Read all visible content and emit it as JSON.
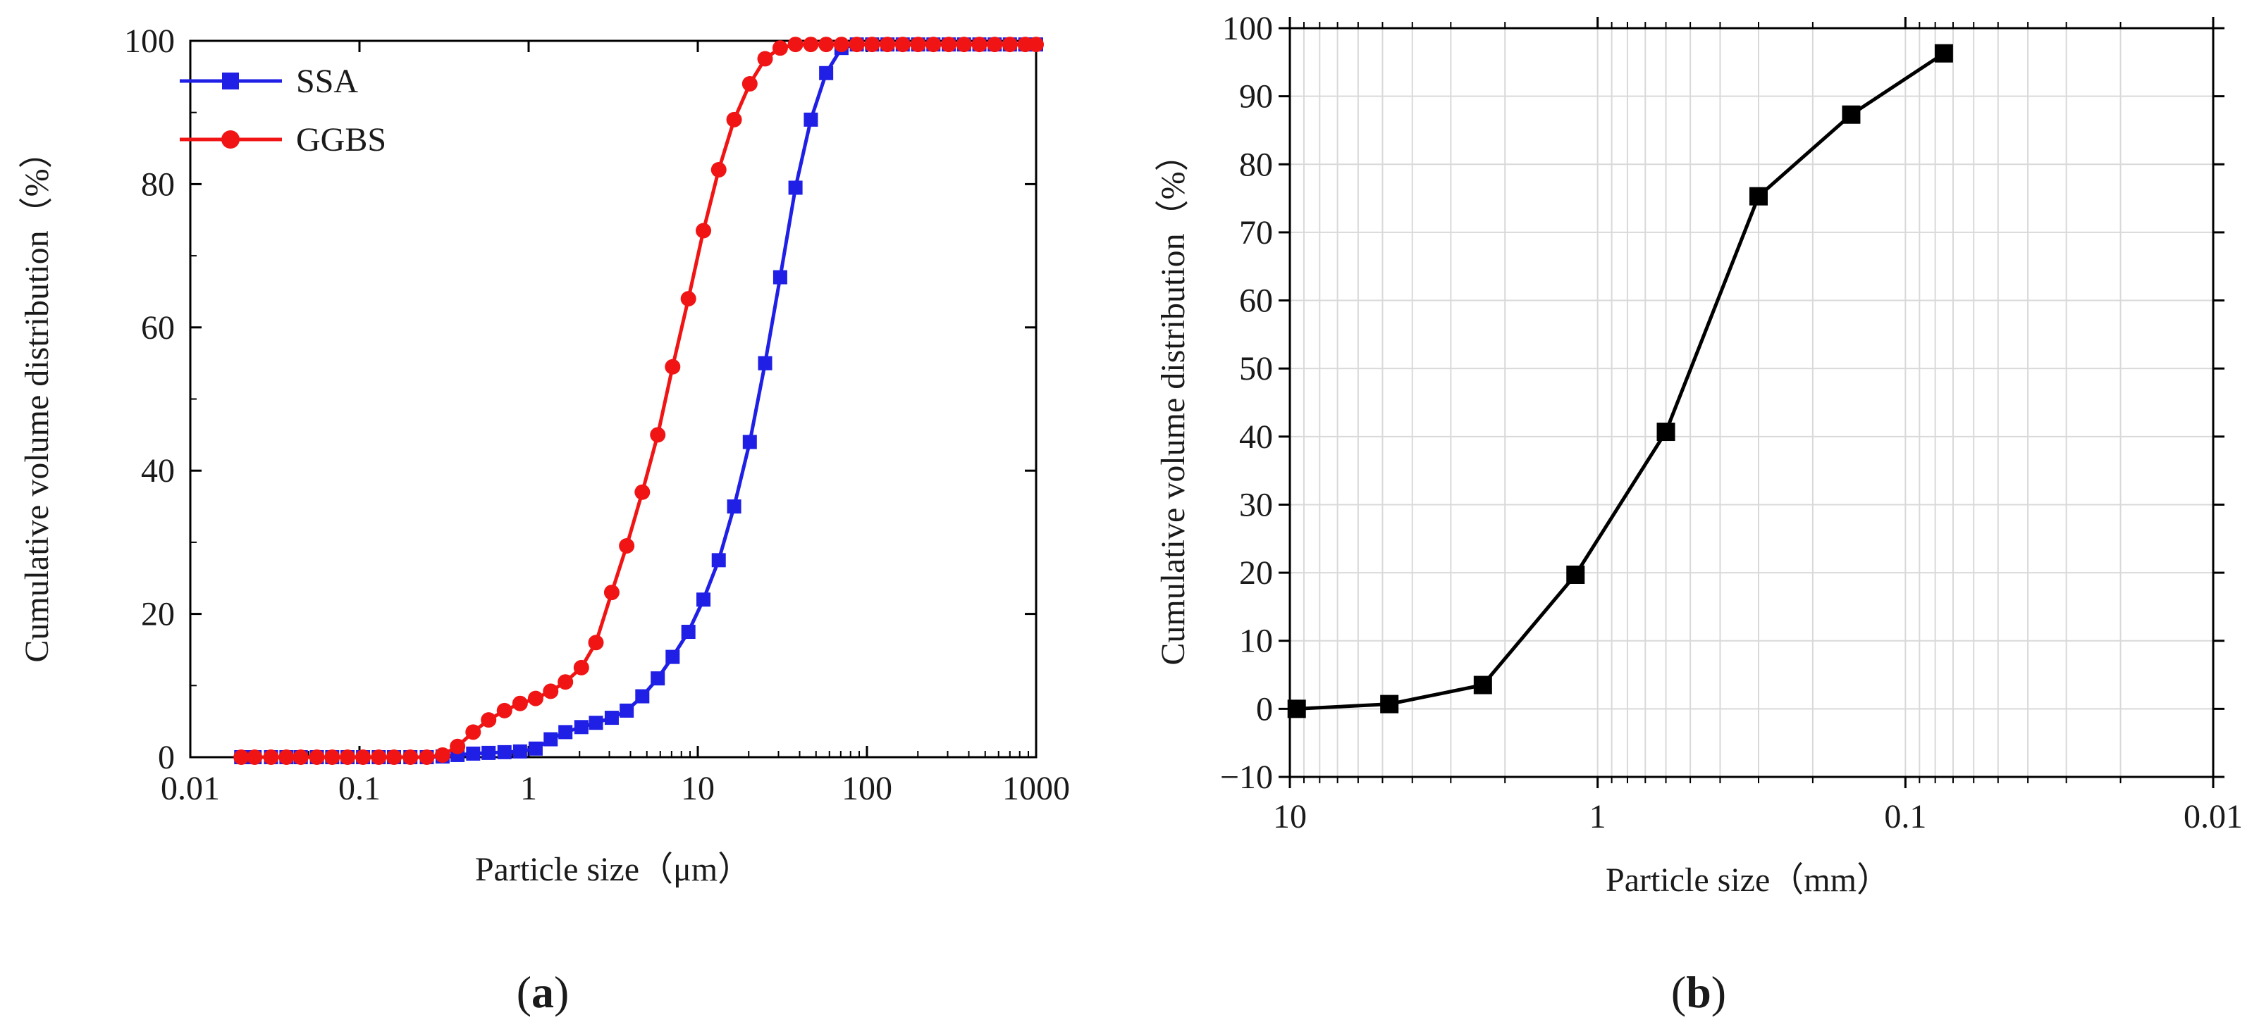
{
  "colors": {
    "ssa": "#1f1fe6",
    "ggbs": "#f01414",
    "panel_b": "#000000",
    "grid": "#d9d9d9",
    "axis": "#000000"
  },
  "chart_data": [
    {
      "id": "a",
      "type": "line",
      "panel_label": "a",
      "title": "",
      "xlabel": "Particle size（μm）",
      "ylabel": "Cumulative volume distribution（%）",
      "xscale": "log",
      "xlim": [
        0.01,
        1000
      ],
      "ylim": [
        0,
        100
      ],
      "xticks": [
        0.01,
        0.1,
        1,
        10,
        100,
        1000
      ],
      "xtick_labels": [
        "0.01",
        "0.1",
        "1",
        "10",
        "100",
        "1000"
      ],
      "yticks": [
        0,
        20,
        40,
        60,
        80,
        100
      ],
      "ytick_labels": [
        "0",
        "20",
        "40",
        "60",
        "80",
        "100"
      ],
      "grid": false,
      "legend_position": "top-left",
      "series": [
        {
          "name": "SSA",
          "marker": "square",
          "x": [
            0.02,
            0.024,
            0.03,
            0.037,
            0.045,
            0.056,
            0.069,
            0.085,
            0.105,
            0.13,
            0.16,
            0.2,
            0.25,
            0.31,
            0.38,
            0.47,
            0.58,
            0.72,
            0.89,
            1.1,
            1.35,
            1.65,
            2.05,
            2.5,
            3.1,
            3.8,
            4.7,
            5.8,
            7.1,
            8.8,
            10.8,
            13.3,
            16.4,
            20.3,
            25,
            30.7,
            37.8,
            46.6,
            57.4,
            70.7,
            87.1,
            107.3,
            132.2,
            162.8,
            200.6,
            247.1,
            304.4,
            375,
            462,
            569,
            700,
            863,
            1000
          ],
          "y": [
            0,
            0,
            0,
            0,
            0,
            0,
            0,
            0,
            0,
            0,
            0,
            0,
            0,
            0.1,
            0.3,
            0.5,
            0.6,
            0.7,
            0.8,
            1.2,
            2.5,
            3.5,
            4.2,
            4.8,
            5.5,
            6.5,
            8.5,
            11,
            14,
            17.5,
            22,
            27.5,
            35,
            44,
            55,
            67,
            79.5,
            89,
            95.5,
            99,
            99.5,
            99.5,
            99.5,
            99.5,
            99.5,
            99.5,
            99.5,
            99.5,
            99.5,
            99.5,
            99.5,
            99.5,
            99.5
          ]
        },
        {
          "name": "GGBS",
          "marker": "circle",
          "x": [
            0.02,
            0.024,
            0.03,
            0.037,
            0.045,
            0.056,
            0.069,
            0.085,
            0.105,
            0.13,
            0.16,
            0.2,
            0.25,
            0.31,
            0.38,
            0.47,
            0.58,
            0.72,
            0.89,
            1.1,
            1.35,
            1.65,
            2.05,
            2.5,
            3.1,
            3.8,
            4.7,
            5.8,
            7.1,
            8.8,
            10.8,
            13.3,
            16.4,
            20.3,
            25,
            30.7,
            37.8,
            46.6,
            57.4,
            70.7,
            87.1,
            107.3,
            132.2,
            162.8,
            200.6,
            247.1,
            304.4,
            375,
            462,
            569,
            700,
            863,
            1000
          ],
          "y": [
            0,
            0,
            0,
            0,
            0,
            0,
            0,
            0,
            0,
            0,
            0,
            0,
            0,
            0.3,
            1.5,
            3.5,
            5.2,
            6.5,
            7.5,
            8.2,
            9.2,
            10.5,
            12.5,
            16,
            23,
            29.5,
            37,
            45,
            54.5,
            64,
            73.5,
            82,
            89,
            94,
            97.5,
            99,
            99.5,
            99.5,
            99.5,
            99.5,
            99.5,
            99.5,
            99.5,
            99.5,
            99.5,
            99.5,
            99.5,
            99.5,
            99.5,
            99.5,
            99.5,
            99.5,
            99.5
          ]
        }
      ]
    },
    {
      "id": "b",
      "type": "line",
      "panel_label": "b",
      "title": "",
      "xlabel": "Particle size（mm）",
      "ylabel": "Cumulative volume distribution（%）",
      "xscale": "log",
      "xreversed": true,
      "xlim": [
        10,
        0.01
      ],
      "ylim": [
        -10,
        100
      ],
      "xticks": [
        10,
        1,
        0.1,
        0.01
      ],
      "xtick_labels": [
        "10",
        "1",
        "0.1",
        "0.01"
      ],
      "yticks": [
        -10,
        0,
        10,
        20,
        30,
        40,
        50,
        60,
        70,
        80,
        90,
        100
      ],
      "ytick_labels": [
        "−10",
        "0",
        "10",
        "20",
        "30",
        "40",
        "50",
        "60",
        "70",
        "80",
        "90",
        "100"
      ],
      "grid": true,
      "series": [
        {
          "name": "",
          "marker": "square",
          "x": [
            9.5,
            4.75,
            2.36,
            1.18,
            0.6,
            0.3,
            0.15,
            0.075
          ],
          "y": [
            0,
            0.7,
            3.5,
            19.7,
            40.7,
            75.3,
            87.3,
            96.3
          ]
        }
      ]
    }
  ]
}
